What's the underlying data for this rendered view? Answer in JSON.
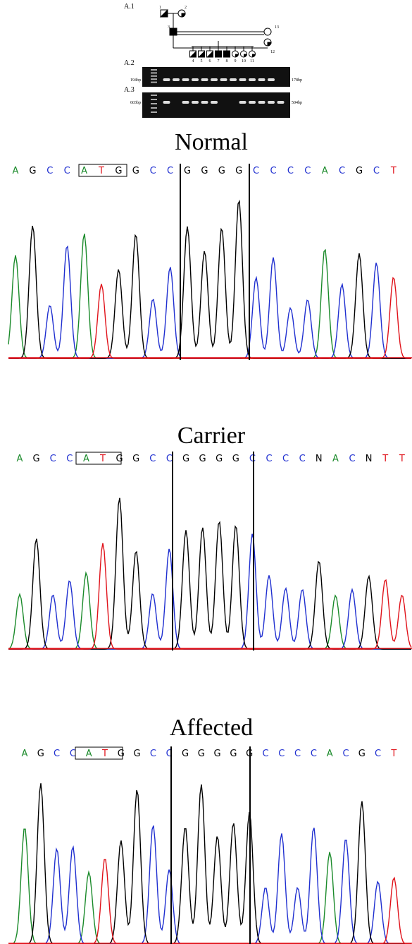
{
  "panel_a": {
    "labels": [
      "A.1",
      "A.2",
      "A.3"
    ],
    "pedigree_ids": [
      "1",
      "2",
      "3",
      "4",
      "5",
      "6",
      "7",
      "8",
      "9",
      "10",
      "11",
      "12",
      "13"
    ],
    "gel_a2": {
      "left_marker": "194bp",
      "right_marker": "178bp"
    },
    "gel_a3": {
      "left_marker": "603bp",
      "right_marker": "504bp"
    }
  },
  "chromatograms": [
    {
      "title": "Normal",
      "bases": [
        "A",
        "G",
        "C",
        "C",
        "A",
        "T",
        "G",
        "G",
        "C",
        "C",
        "G",
        "G",
        "G",
        "G",
        "C",
        "C",
        "C",
        "C",
        "A",
        "C",
        "G",
        "C",
        "T"
      ]
    },
    {
      "title": "Carrier",
      "bases": [
        "A",
        "G",
        "C",
        "C",
        "A",
        "T",
        "G",
        "G",
        "C",
        "C",
        "G",
        "G",
        "G",
        "G",
        "C",
        "C",
        "C",
        "C",
        "N",
        "A",
        "C",
        "N",
        "T",
        "T"
      ]
    },
    {
      "title": "Affected",
      "bases": [
        "A",
        "G",
        "C",
        "C",
        "A",
        "T",
        "G",
        "G",
        "C",
        "C",
        "G",
        "G",
        "G",
        "G",
        "G",
        "C",
        "C",
        "C",
        "C",
        "A",
        "C",
        "G",
        "C",
        "T"
      ]
    }
  ]
}
